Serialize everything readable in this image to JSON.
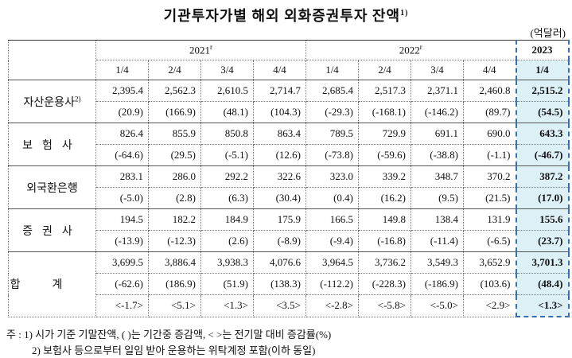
{
  "title": {
    "text": "기관투자가별 해외 외화증권투자 잔액",
    "sup": "1)"
  },
  "unit": "(억달러)",
  "table": {
    "years": [
      {
        "text": "2021",
        "sup": "r"
      },
      {
        "text": "2022",
        "sup": "r"
      },
      {
        "text": "2023"
      }
    ],
    "quarters": [
      "1/4",
      "2/4",
      "3/4",
      "4/4",
      "1/4",
      "2/4",
      "3/4",
      "4/4",
      "1/4"
    ],
    "groups": [
      {
        "label": "자산운용사",
        "sup": "2)",
        "rows": [
          [
            "2,395.4",
            "2,562.3",
            "2,610.5",
            "2,714.7",
            "2,685.4",
            "2,517.3",
            "2,371.1",
            "2,460.8",
            "2,515.2"
          ],
          [
            "(20.9)",
            "(166.9)",
            "(48.1)",
            "(104.3)",
            "(-29.3)",
            "(-168.1)",
            "(-146.2)",
            "(89.7)",
            "(54.5)"
          ]
        ]
      },
      {
        "label": "보험사",
        "rows": [
          [
            "826.4",
            "855.9",
            "850.8",
            "863.4",
            "789.5",
            "729.9",
            "691.1",
            "690.0",
            "643.3"
          ],
          [
            "(-64.6)",
            "(29.5)",
            "(-5.1)",
            "(12.6)",
            "(-73.8)",
            "(-59.6)",
            "(-38.8)",
            "(-1.1)",
            "(-46.7)"
          ]
        ]
      },
      {
        "label": "외국환은행",
        "rows": [
          [
            "283.1",
            "286.0",
            "292.2",
            "322.6",
            "323.0",
            "339.2",
            "348.7",
            "370.2",
            "387.2"
          ],
          [
            "(-5.0)",
            "(2.8)",
            "(6.3)",
            "(30.4)",
            "(0.4)",
            "(16.2)",
            "(9.5)",
            "(21.5)",
            "(17.0)"
          ]
        ]
      },
      {
        "label": "증권사",
        "rows": [
          [
            "194.5",
            "182.2",
            "184.9",
            "175.9",
            "166.5",
            "149.8",
            "138.4",
            "131.9",
            "155.6"
          ],
          [
            "(-13.9)",
            "(-12.3)",
            "(2.6)",
            "(-8.9)",
            "(-9.4)",
            "(-16.8)",
            "(-11.4)",
            "(-6.5)",
            "(23.7)"
          ]
        ]
      },
      {
        "label": "합계",
        "rows": [
          [
            "3,699.5",
            "3,886.4",
            "3,938.3",
            "4,076.6",
            "3,964.5",
            "3,736.2",
            "3,549.3",
            "3,652.9",
            "3,701.3"
          ],
          [
            "(-62.6)",
            "(186.9)",
            "(51.9)",
            "(138.3)",
            "(-112.2)",
            "(-228.3)",
            "(-186.9)",
            "(103.6)",
            "(48.4)"
          ],
          [
            "<-1.7>",
            "<5.1>",
            "<1.3>",
            "<3.5>",
            "<-2.8>",
            "<-5.8>",
            "<-5.0>",
            "<2.9>",
            "<1.3>"
          ]
        ]
      }
    ]
  },
  "notes": [
    "주 : 1) 시가 기준 기말잔액, (    )는 기간중 증감액, <    >는 전기말 대비 증감률(%)",
    "2) 보험사 등으로부터 일임 받아 운용하는 위탁계정 포함(이하 동일)"
  ]
}
